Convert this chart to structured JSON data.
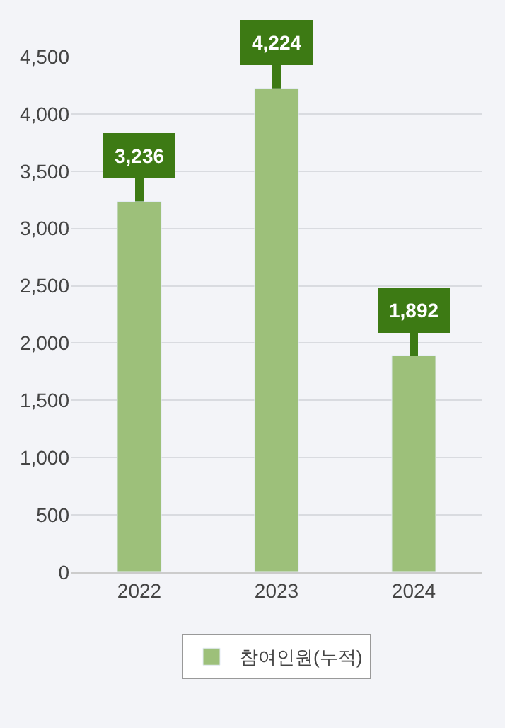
{
  "chart_data": {
    "type": "bar",
    "categories": [
      "2022",
      "2023",
      "2024"
    ],
    "series": [
      {
        "name": "참여인원(누적)",
        "color": "#9dc07a",
        "values": [
          3236,
          4224,
          1892
        ],
        "value_labels": [
          "3,236",
          "4,224",
          "1,892"
        ]
      }
    ],
    "ylim": [
      0,
      4500
    ],
    "yticks": [
      0,
      500,
      {
        "value": 1000,
        "label": "1,000"
      },
      {
        "value": 1500,
        "label": "1,500"
      },
      {
        "value": 2000,
        "label": "2,000"
      },
      {
        "value": 2500,
        "label": "2,500"
      },
      {
        "value": 3000,
        "label": "3,000"
      },
      {
        "value": 3500,
        "label": "3,500"
      },
      {
        "value": 4000,
        "label": "4,000"
      },
      {
        "value": 4500,
        "label": "4,500"
      }
    ],
    "grid": "y",
    "legend": "bottom"
  }
}
